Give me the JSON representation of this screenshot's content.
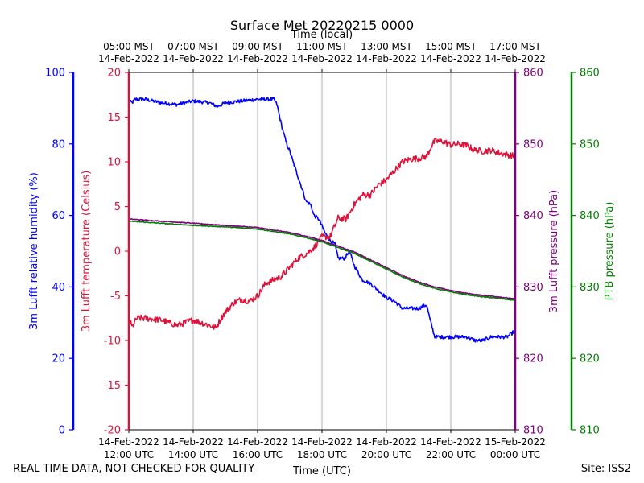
{
  "chart_data": {
    "type": "line",
    "title": "Surface Met 20220215 0000",
    "top_axis_label": "Time (local)",
    "xlabel": "Time (UTC)",
    "x_range_hours": [
      12,
      24
    ],
    "top_ticks": [
      {
        "hour": 12,
        "time": "05:00 MST",
        "date": "14-Feb-2022"
      },
      {
        "hour": 14,
        "time": "07:00 MST",
        "date": "14-Feb-2022"
      },
      {
        "hour": 16,
        "time": "09:00 MST",
        "date": "14-Feb-2022"
      },
      {
        "hour": 18,
        "time": "11:00 MST",
        "date": "14-Feb-2022"
      },
      {
        "hour": 20,
        "time": "13:00 MST",
        "date": "14-Feb-2022"
      },
      {
        "hour": 22,
        "time": "15:00 MST",
        "date": "14-Feb-2022"
      },
      {
        "hour": 24,
        "time": "17:00 MST",
        "date": "14-Feb-2022"
      }
    ],
    "bottom_ticks": [
      {
        "hour": 12,
        "date": "14-Feb-2022",
        "time": "12:00 UTC"
      },
      {
        "hour": 14,
        "date": "14-Feb-2022",
        "time": "14:00 UTC"
      },
      {
        "hour": 16,
        "date": "14-Feb-2022",
        "time": "16:00 UTC"
      },
      {
        "hour": 18,
        "date": "14-Feb-2022",
        "time": "18:00 UTC"
      },
      {
        "hour": 20,
        "date": "14-Feb-2022",
        "time": "20:00 UTC"
      },
      {
        "hour": 22,
        "date": "14-Feb-2022",
        "time": "22:00 UTC"
      },
      {
        "hour": 24,
        "date": "15-Feb-2022",
        "time": "00:00 UTC"
      }
    ],
    "axes": {
      "rh": {
        "label": "3m Lufft relative humidity (%)",
        "color": "#0000ff",
        "ylim": [
          0,
          100
        ],
        "ticks": [
          0,
          20,
          40,
          60,
          80,
          100
        ]
      },
      "temp": {
        "label": "3m Lufft temperature (Celsius)",
        "color": "#dc143c",
        "ylim": [
          -20,
          20
        ],
        "ticks": [
          -20,
          -15,
          -10,
          -5,
          0,
          5,
          10,
          15,
          20
        ]
      },
      "pres": {
        "label": "3m Lufft pressure (hPa)",
        "color": "#800080",
        "ylim": [
          810,
          860
        ],
        "ticks": [
          810,
          820,
          830,
          840,
          850,
          860
        ]
      },
      "ptb": {
        "label": "PTB pressure (hPa)",
        "color": "#008000",
        "ylim": [
          810,
          860
        ],
        "ticks": [
          810,
          820,
          830,
          840,
          850,
          860
        ]
      }
    },
    "series": [
      {
        "name": "3m Lufft relative humidity",
        "axis": "rh",
        "color": "#0000ff",
        "noise": 0.5,
        "x": [
          12.0,
          12.1,
          12.2,
          12.5,
          13.0,
          13.5,
          14.0,
          14.5,
          14.75,
          15.0,
          15.5,
          16.0,
          16.25,
          16.5,
          16.6,
          16.75,
          16.9,
          17.0,
          17.1,
          17.25,
          17.4,
          17.5,
          17.65,
          17.75,
          17.9,
          18.0,
          18.1,
          18.25,
          18.4,
          18.5,
          18.7,
          18.85,
          19.0,
          19.25,
          19.5,
          19.75,
          20.0,
          20.25,
          20.5,
          20.75,
          21.0,
          21.25,
          21.35,
          21.5,
          21.75,
          22.0,
          22.25,
          22.5,
          22.75,
          23.0,
          23.25,
          23.5,
          23.75,
          23.9,
          24.0
        ],
        "y": [
          92,
          91.5,
          92.5,
          92.5,
          91.5,
          91,
          92,
          91.5,
          90.5,
          91.5,
          92,
          92.5,
          92.5,
          92.5,
          91,
          85,
          80,
          78,
          75,
          71,
          67,
          64,
          63,
          60,
          59,
          57,
          55,
          53,
          52,
          48,
          48,
          50,
          46,
          42,
          41,
          39,
          37,
          36,
          34,
          34,
          34,
          35,
          31,
          26,
          26,
          26,
          26,
          26,
          25,
          25,
          26,
          26,
          26,
          27,
          28
        ]
      },
      {
        "name": "3m Lufft temperature",
        "axis": "temp",
        "color": "#dc143c",
        "noise": 0.35,
        "x": [
          12.0,
          12.1,
          12.25,
          12.5,
          13.0,
          13.5,
          14.0,
          14.5,
          14.7,
          14.85,
          15.0,
          15.25,
          15.5,
          15.75,
          16.0,
          16.25,
          16.5,
          16.75,
          17.0,
          17.25,
          17.5,
          17.75,
          18.0,
          18.25,
          18.5,
          18.75,
          19.0,
          19.25,
          19.5,
          19.75,
          20.0,
          20.25,
          20.5,
          20.75,
          21.0,
          21.25,
          21.4,
          21.5,
          21.75,
          22.0,
          22.25,
          22.5,
          22.75,
          23.0,
          23.25,
          23.5,
          23.75,
          24.0
        ],
        "y": [
          -7.5,
          -8.5,
          -7.5,
          -7.5,
          -7.7,
          -8.3,
          -7.7,
          -8.3,
          -8.6,
          -7.6,
          -6.8,
          -5.8,
          -5.4,
          -5.6,
          -5.0,
          -3.6,
          -3.2,
          -2.8,
          -1.8,
          -0.8,
          -0.3,
          0.4,
          1.6,
          1.6,
          3.7,
          3.6,
          5.2,
          6.3,
          6.3,
          7.4,
          8.0,
          9.0,
          10.0,
          10.3,
          10.4,
          10.6,
          11.8,
          12.3,
          12.3,
          11.9,
          12.0,
          11.8,
          11.3,
          11.2,
          11.3,
          11.0,
          10.8,
          10.6
        ]
      },
      {
        "name": "3m Lufft pressure",
        "axis": "pres",
        "color": "#800080",
        "noise": 0.05,
        "x": [
          12.0,
          13.0,
          14.0,
          15.0,
          16.0,
          17.0,
          17.5,
          18.0,
          18.5,
          19.0,
          19.5,
          20.0,
          20.5,
          21.0,
          21.5,
          22.0,
          22.5,
          23.0,
          23.5,
          24.0
        ],
        "y": [
          839.5,
          839.2,
          838.9,
          838.6,
          838.3,
          837.6,
          837.1,
          836.5,
          835.7,
          834.9,
          833.8,
          832.7,
          831.6,
          830.7,
          830.0,
          829.5,
          829.1,
          828.8,
          828.6,
          828.3
        ]
      },
      {
        "name": "PTB pressure",
        "axis": "ptb",
        "color": "#008000",
        "noise": 0.05,
        "x": [
          12.0,
          13.0,
          14.0,
          15.0,
          16.0,
          17.0,
          17.5,
          18.0,
          18.5,
          19.0,
          19.5,
          20.0,
          20.5,
          21.0,
          21.5,
          22.0,
          22.5,
          23.0,
          23.5,
          24.0
        ],
        "y": [
          839.2,
          838.9,
          838.6,
          838.4,
          838.1,
          837.4,
          836.9,
          836.3,
          835.5,
          834.7,
          833.6,
          832.5,
          831.4,
          830.5,
          829.8,
          829.3,
          828.9,
          828.6,
          828.4,
          828.1
        ]
      }
    ]
  },
  "footer": {
    "left": "REAL TIME DATA, NOT CHECKED FOR QUALITY",
    "right": "Site: ISS2"
  }
}
